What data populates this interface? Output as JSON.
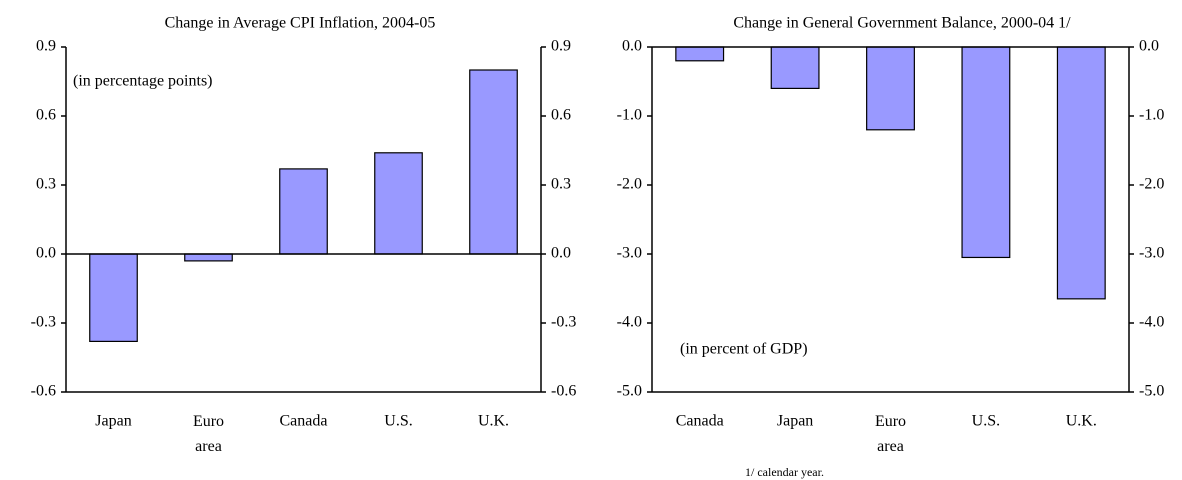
{
  "chart_data": [
    {
      "type": "bar",
      "title": "Change in Average CPI Inflation, 2004-05",
      "annotation": "(in percentage points)",
      "categories": [
        "Japan",
        "Euro area",
        "Canada",
        "U.S.",
        "U.K."
      ],
      "values": [
        -0.38,
        -0.03,
        0.37,
        0.44,
        0.8
      ],
      "color": "#9999ff",
      "ylim": [
        -0.6,
        0.9
      ],
      "yticks": [
        -0.6,
        -0.3,
        {
          "value": 0,
          "label": "0.0"
        },
        0.3,
        0.6,
        0.9
      ]
    },
    {
      "type": "bar",
      "title": "Change in General Government Balance, 2000-04 1/",
      "annotation": "(in percent of GDP)",
      "footnote": "1/ calendar year.",
      "categories": [
        "Canada",
        "Japan",
        "Euro area",
        "U.S.",
        "U.K."
      ],
      "values": [
        -0.2,
        -0.6,
        -1.2,
        -3.05,
        -3.65
      ],
      "color": "#9999ff",
      "ylim": [
        -5,
        0
      ],
      "yticks": [
        {
          "value": -5,
          "label": "-5.0"
        },
        {
          "value": -4,
          "label": "-4.0"
        },
        {
          "value": -3,
          "label": "-3.0"
        },
        {
          "value": -2,
          "label": "-2.0"
        },
        {
          "value": -1,
          "label": "-1.0"
        },
        {
          "value": 0,
          "label": "0.0"
        }
      ]
    }
  ]
}
